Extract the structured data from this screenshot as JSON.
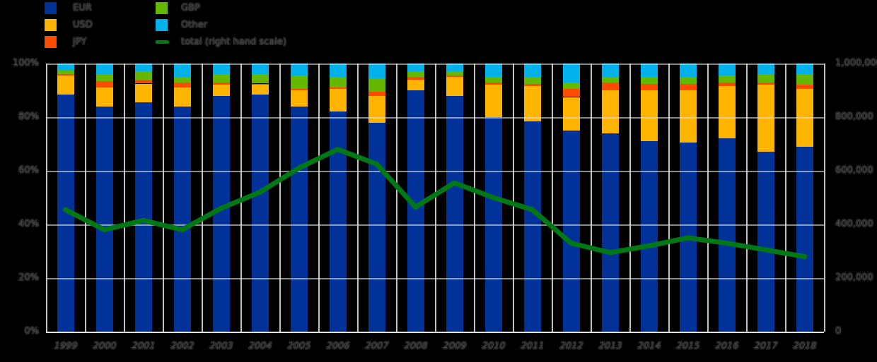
{
  "chart_data": {
    "type": "combo (stacked bar + line)",
    "title": "",
    "categories": [
      "1999",
      "2000",
      "2001",
      "2002",
      "2003",
      "2004",
      "2005",
      "2006",
      "2007",
      "2008",
      "2009",
      "2010",
      "2011",
      "2012",
      "2013",
      "2014",
      "2015",
      "2016",
      "2017",
      "2018"
    ],
    "stack_unit": "percent share (left hand scale)",
    "series": [
      {
        "name": "EUR",
        "type": "bar",
        "color": "#003299",
        "values": [
          88.5,
          84,
          85.5,
          84,
          88,
          88.5,
          84,
          82,
          78,
          90,
          88,
          80,
          78.5,
          75,
          74,
          71,
          70.5,
          72,
          67,
          69
        ]
      },
      {
        "name": "USD",
        "type": "bar",
        "color": "#ffb400",
        "values": [
          7,
          7,
          7,
          7,
          4,
          3.5,
          6,
          8.5,
          10,
          4,
          7,
          12,
          13,
          12.5,
          16,
          19,
          19.5,
          19.5,
          25,
          21.5
        ]
      },
      {
        "name": "JPY",
        "type": "bar",
        "color": "#ff4b00",
        "values": [
          0.5,
          2.5,
          1.5,
          2,
          1,
          0.5,
          0.5,
          0.5,
          1.5,
          1,
          0.5,
          1,
          1,
          3,
          3,
          2.5,
          2.5,
          1.5,
          1,
          1.5
        ]
      },
      {
        "name": "GBP",
        "type": "bar",
        "color": "#65b800",
        "values": [
          1.5,
          2.5,
          3,
          2,
          3,
          3.5,
          5,
          4,
          5,
          2,
          1.5,
          2,
          2.5,
          2.5,
          2,
          2.5,
          2.5,
          2.5,
          3,
          4
        ]
      },
      {
        "name": "Other",
        "type": "bar",
        "color": "#00b1ea",
        "values": [
          2.5,
          4,
          3,
          5,
          4,
          4,
          4.5,
          5,
          5.5,
          3,
          3,
          5,
          5,
          7,
          5,
          5,
          5,
          4.5,
          4,
          4
        ]
      }
    ],
    "line_series": {
      "name": "total (right hand scale)",
      "type": "line",
      "color": "#007816",
      "values": [
        455000,
        380000,
        415000,
        380000,
        460000,
        520000,
        610000,
        680000,
        625000,
        465000,
        555000,
        500000,
        455000,
        330000,
        295000,
        320000,
        350000,
        330000,
        305000,
        280000
      ]
    },
    "left_axis": {
      "min": 0,
      "max": 100,
      "tick_labels": [
        "100%",
        "80%",
        "60%",
        "40%",
        "20%",
        "0%"
      ]
    },
    "right_axis": {
      "min": 0,
      "max": 1000000,
      "tick_labels": [
        "1,000,000",
        "800,000",
        "600,000",
        "400,000",
        "200,000",
        "0"
      ]
    },
    "legend": {
      "column1": [
        {
          "label": "EUR",
          "marker": "square",
          "color": "#003299"
        },
        {
          "label": "USD",
          "marker": "square",
          "color": "#ffb400"
        },
        {
          "label": "JPY",
          "marker": "square",
          "color": "#ff4b00"
        }
      ],
      "column2": [
        {
          "label": "GBP",
          "marker": "square",
          "color": "#65b800"
        },
        {
          "label": "Other",
          "marker": "square",
          "color": "#00b1ea"
        },
        {
          "label": "total (right hand scale)",
          "marker": "line",
          "color": "#007816"
        }
      ]
    },
    "grid": true,
    "background_color": "#000000",
    "gridline_color": "#c3c3c3"
  }
}
